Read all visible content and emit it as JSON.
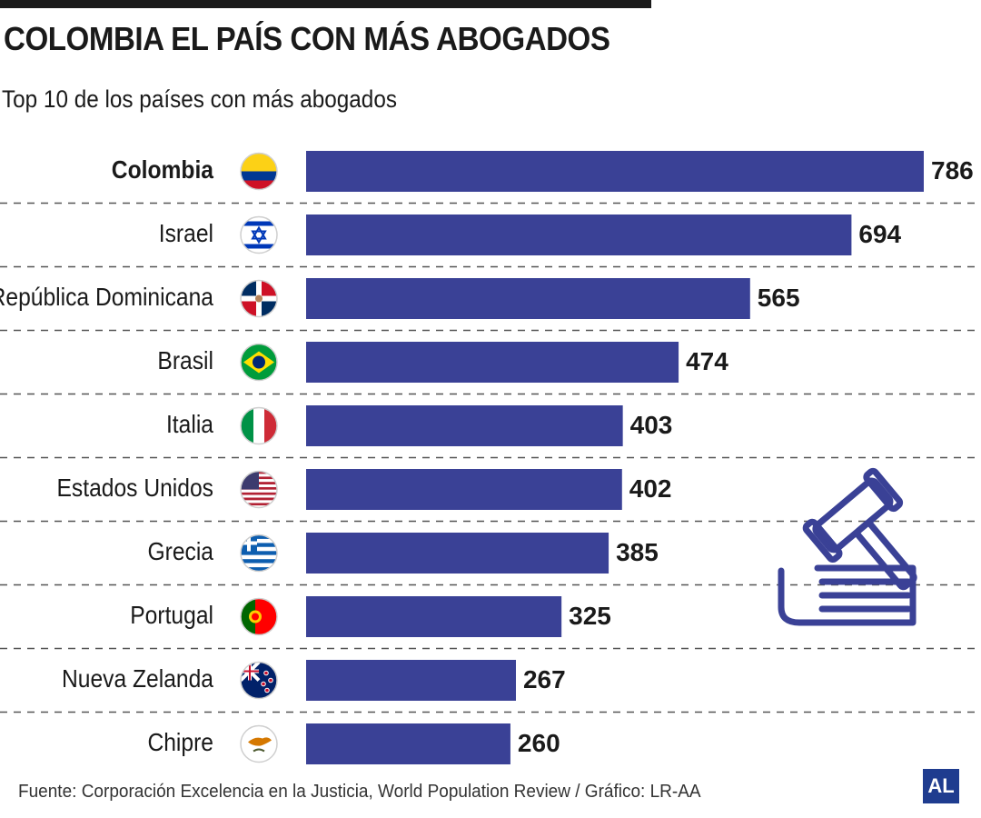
{
  "header": {
    "title": "COLOMBIA EL PAÍS CON MÁS ABOGADOS",
    "subtitle": "Top 10 de los países con más abogados"
  },
  "colors": {
    "bar": "#3a4196",
    "text": "#1a1a1a",
    "divider": "#555555",
    "icon": "#3a4196",
    "logo_bg": "#1f3c8f"
  },
  "chart_data": {
    "type": "bar",
    "orientation": "horizontal",
    "categories": [
      "Colombia",
      "Israel",
      "República Dominicana",
      "Brasil",
      "Italia",
      "Estados Unidos",
      "Grecia",
      "Portugal",
      "Nueva Zelanda",
      "Chipre"
    ],
    "values": [
      786,
      694,
      565,
      474,
      403,
      402,
      385,
      325,
      267,
      260
    ],
    "highlighted_category": "Colombia",
    "xlim": [
      0,
      786
    ],
    "grid": "dashed row dividers",
    "flag_icons": [
      "colombia-flag-icon",
      "israel-flag-icon",
      "dominican-republic-flag-icon",
      "brazil-flag-icon",
      "italy-flag-icon",
      "usa-flag-icon",
      "greece-flag-icon",
      "portugal-flag-icon",
      "new-zealand-flag-icon",
      "cyprus-flag-icon"
    ]
  },
  "decoration": {
    "icon": "gavel-and-book-icon"
  },
  "footer": {
    "source": "Fuente: Corporación Excelencia en la Justicia, World Population Review / Gráfico: LR-AA",
    "logo": "AL"
  }
}
